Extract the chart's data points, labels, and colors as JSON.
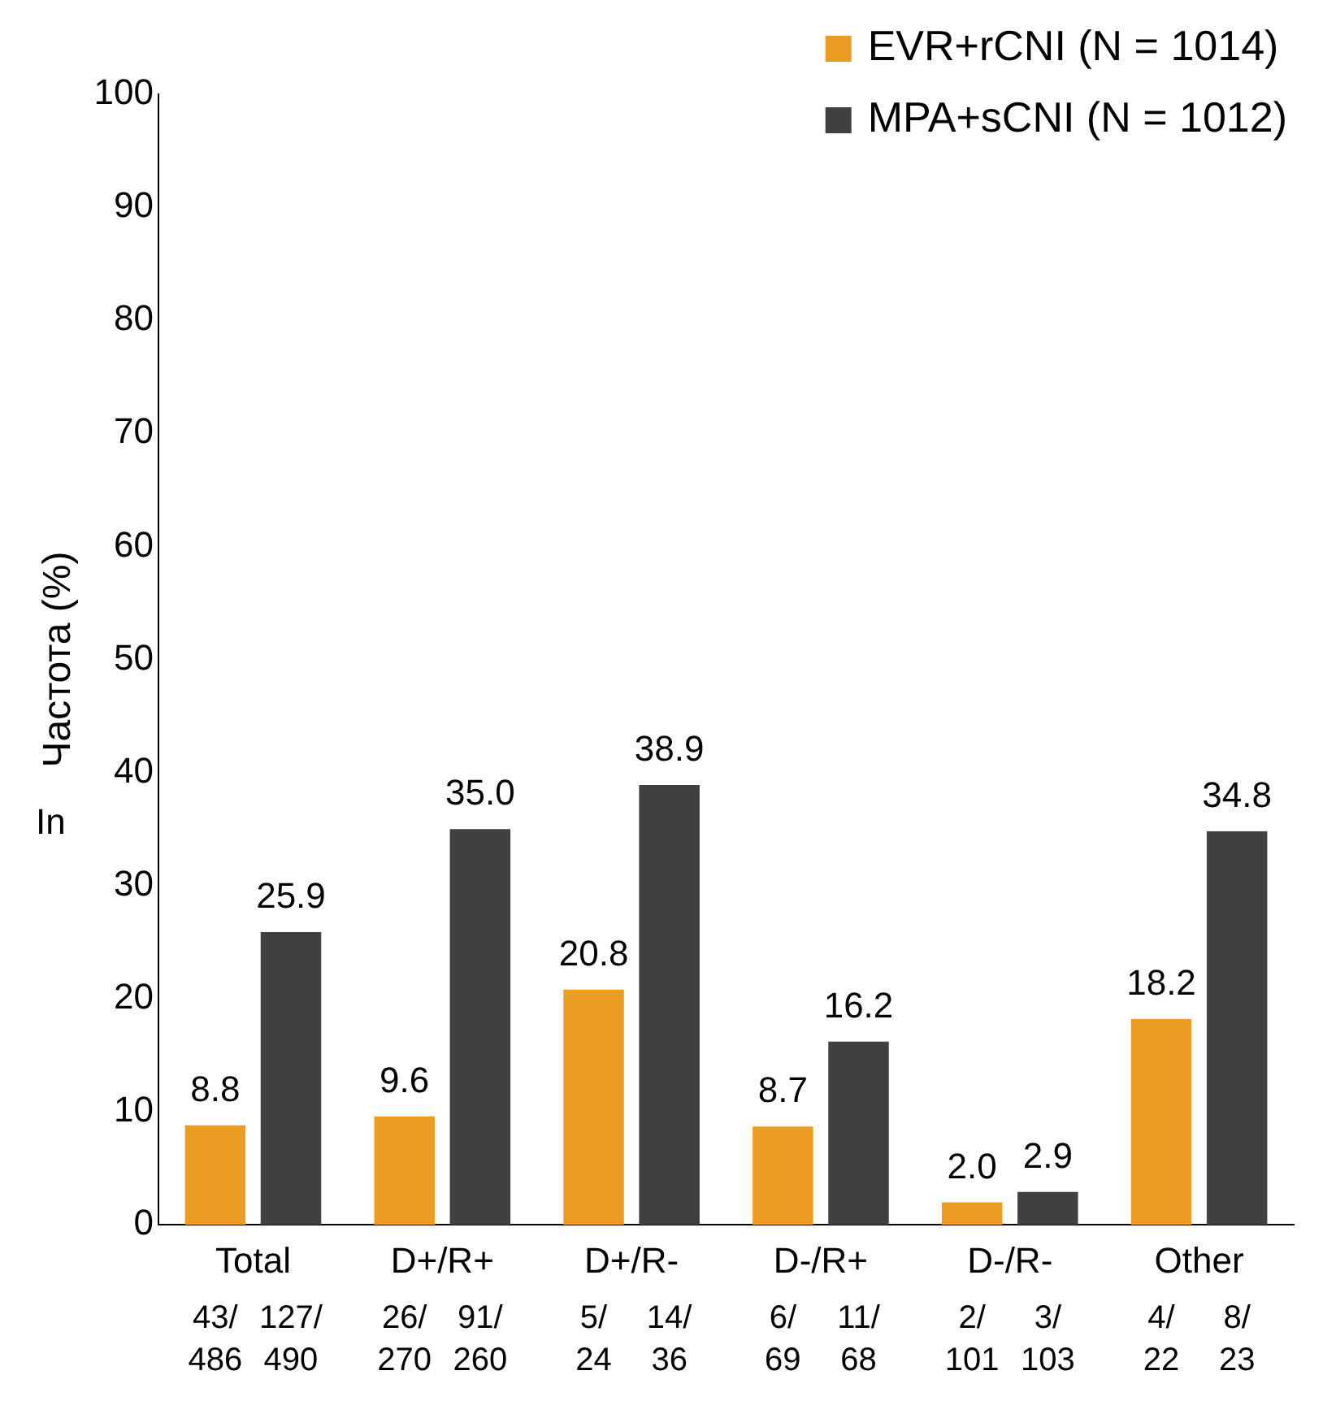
{
  "chart_data": {
    "type": "bar",
    "ylabel": "Частота (%)",
    "categories": [
      "Total",
      "D+/R+",
      "D+/R-",
      "D-/R+",
      "D-/R-",
      "Other"
    ],
    "series": [
      {
        "name": "EVR+rCNI (N = 1014)",
        "color": "#eb9c22",
        "values": [
          8.8,
          9.6,
          20.8,
          8.7,
          2.0,
          18.2
        ],
        "value_labels": [
          "8.8",
          "9.6",
          "20.8",
          "8.7",
          "2.0",
          "18.2"
        ]
      },
      {
        "name": "MPA+sCNI (N = 1012)",
        "color": "#404040",
        "values": [
          25.9,
          35.0,
          38.9,
          16.2,
          2.9,
          34.8
        ],
        "value_labels": [
          "25.9",
          "35.0",
          "38.9",
          "16.2",
          "2.9",
          "34.8"
        ]
      }
    ],
    "ylim": [
      0,
      100
    ],
    "yticks": [
      0,
      10,
      20,
      30,
      40,
      50,
      60,
      70,
      80,
      90,
      100
    ],
    "grid": false,
    "legend": "top right",
    "annotations": [
      "In",
      "43/\n486",
      "127/\n490",
      "26/\n270",
      "91/\n260",
      "5/\n24",
      "14/\n36",
      "6/\n69",
      "11/\n68",
      "2/\n101",
      "3/\n103",
      "4/\n22",
      "8/\n23"
    ]
  }
}
